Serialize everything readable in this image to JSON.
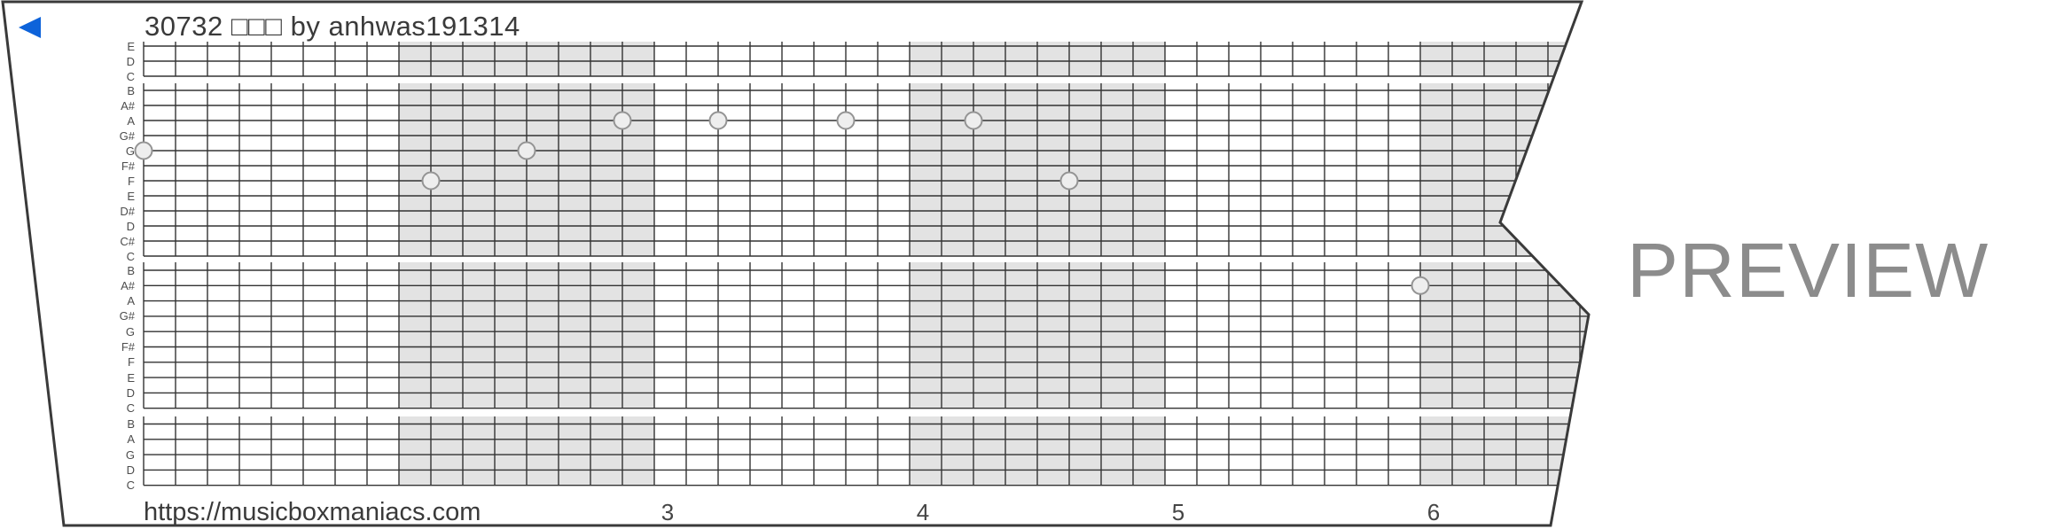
{
  "strip": {
    "title": "30732 □□□ by anhwas191314",
    "url": "https://musicboxmaniacs.com",
    "back_icon": "left-triangle",
    "accent_blue": "#0d63da",
    "paper_color": "#ffffff",
    "edge_color": "#3a3a3a"
  },
  "watermark": {
    "label": "PREVIEW",
    "color": "#8c8c8c"
  },
  "grid": {
    "line_color": "#333333",
    "shade_color": "#e3e3e3",
    "bands": [
      {
        "labels": [
          "E",
          "D",
          "C"
        ]
      },
      {
        "labels": [
          "B",
          "A#",
          "A",
          "G#",
          "G",
          "F#",
          "F",
          "E",
          "D#",
          "D",
          "C#",
          "C"
        ]
      },
      {
        "labels": [
          "B",
          "A#",
          "A",
          "G#",
          "G",
          "F#",
          "F",
          "E",
          "D",
          "C"
        ]
      },
      {
        "labels": [
          "B",
          "A",
          "G",
          "D",
          "C"
        ]
      }
    ],
    "measures": [
      {
        "label": "",
        "shaded": false
      },
      {
        "label": "",
        "shaded": true
      },
      {
        "label": "3",
        "shaded": false
      },
      {
        "label": "4",
        "shaded": true
      },
      {
        "label": "5",
        "shaded": false
      },
      {
        "label": "6",
        "shaded": true
      }
    ],
    "notes": [
      {
        "pitch": "G",
        "band": 1,
        "row": 4,
        "col": 0
      },
      {
        "pitch": "F",
        "band": 1,
        "row": 6,
        "col": 9
      },
      {
        "pitch": "G",
        "band": 1,
        "row": 4,
        "col": 12
      },
      {
        "pitch": "A",
        "band": 1,
        "row": 2,
        "col": 15
      },
      {
        "pitch": "A",
        "band": 1,
        "row": 2,
        "col": 18
      },
      {
        "pitch": "A",
        "band": 1,
        "row": 2,
        "col": 22
      },
      {
        "pitch": "A",
        "band": 1,
        "row": 2,
        "col": 26
      },
      {
        "pitch": "F",
        "band": 1,
        "row": 6,
        "col": 29
      },
      {
        "pitch": "A#",
        "band": 2,
        "row": 1,
        "col": 40
      }
    ],
    "note_dot_fill": "#eeeeee",
    "note_dot_stroke": "#949494"
  }
}
